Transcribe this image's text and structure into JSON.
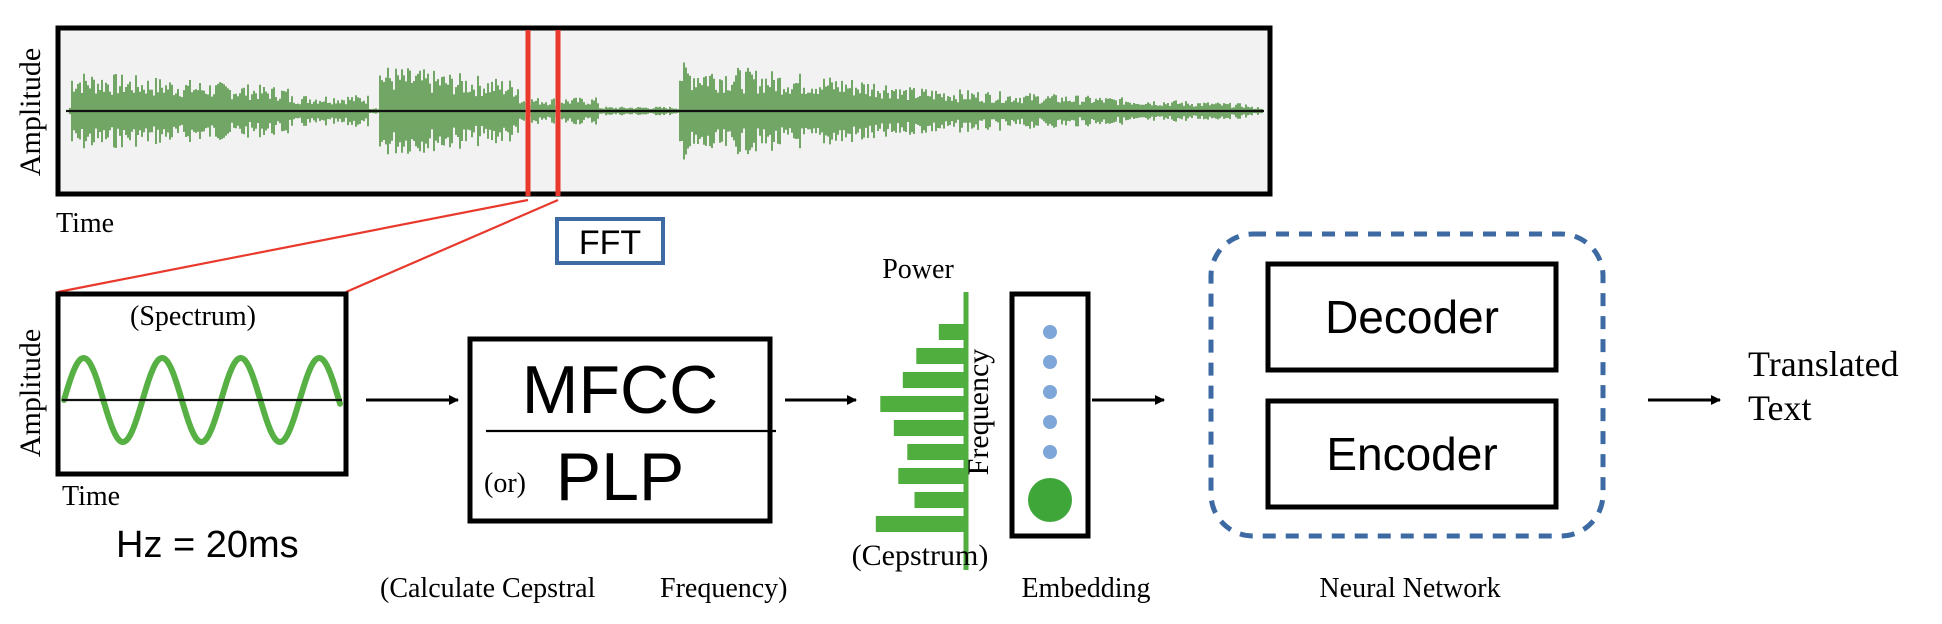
{
  "colors": {
    "waveform": "#2e7d1a",
    "spectrum": "#57b044",
    "cepstrum_bars": "#4fae3d",
    "marker": "#e8392c",
    "fft_box_border": "#3d6aa3",
    "embedding_dot_small": "#7fa6d9",
    "embedding_dot_large": "#3fa63a",
    "nn_border": "#3d6aa3",
    "waveform_bg": "#f2f2f2"
  },
  "waveform": {
    "ylabel": "Amplitude",
    "xlabel": "Time"
  },
  "fft": {
    "label": "FFT"
  },
  "spectrum": {
    "title": "(Spectrum)",
    "ylabel": "Amplitude",
    "xlabel": "Time",
    "window_label": "Hz = 20ms"
  },
  "features": {
    "top": "MFCC",
    "or_label": "(or)",
    "bottom": "PLP",
    "caption_left": "(Calculate Cepstral",
    "caption_right": "Frequency)"
  },
  "cepstrum": {
    "power_label": "Power",
    "frequency_label": "Frequency",
    "caption": "(Cepstrum)",
    "bar_lengths": [
      0.28,
      0.53,
      0.68,
      0.93,
      0.78,
      0.63,
      0.73,
      0.55,
      0.98
    ]
  },
  "embedding": {
    "caption": "Embedding",
    "small_dots": 5
  },
  "neural_network": {
    "decoder": "Decoder",
    "encoder": "Encoder",
    "caption": "Neural Network"
  },
  "output": {
    "line1": "Translated",
    "line2": "Text"
  }
}
